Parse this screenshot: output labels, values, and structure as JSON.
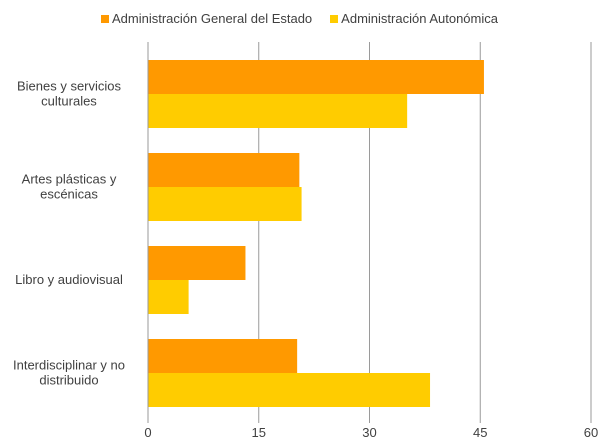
{
  "chart_data": {
    "type": "bar",
    "orientation": "horizontal",
    "categories": [
      "Bienes y servicios culturales",
      "Artes plásticas y escénicas",
      "Libro y  audiovisual",
      "Interdisciplinar y no distribuido"
    ],
    "category_label_lines": [
      [
        "Bienes y servicios",
        "culturales"
      ],
      [
        "Artes plásticas y",
        "escénicas"
      ],
      [
        "Libro y  audiovisual"
      ],
      [
        "Interdisciplinar y no",
        "distribuido"
      ]
    ],
    "series": [
      {
        "name": "Administración General del Estado",
        "color": "#FF9900",
        "values": [
          45.5,
          20.5,
          13.2,
          20.2
        ]
      },
      {
        "name": "Administración Autonómica",
        "color": "#FFCC00",
        "values": [
          35.1,
          20.8,
          5.5,
          38.2
        ]
      }
    ],
    "xlim": [
      0,
      60
    ],
    "xticks": [
      "0",
      "15",
      "30",
      "45",
      "60"
    ],
    "tick_values": [
      0,
      15,
      30,
      45,
      60
    ],
    "grid": "vertical",
    "legend_position": "top",
    "title": "",
    "xlabel": "",
    "ylabel": ""
  }
}
